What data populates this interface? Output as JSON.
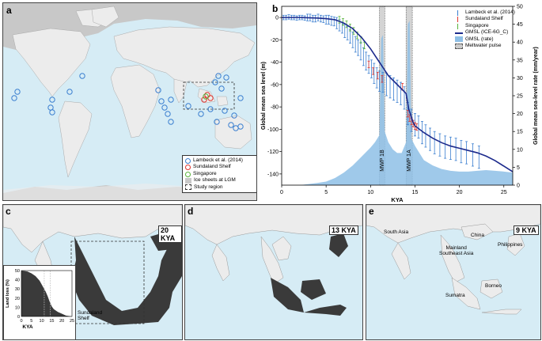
{
  "panels": {
    "a": "a",
    "b": "b",
    "c": "c",
    "d": "d",
    "e": "e"
  },
  "map_legend": {
    "items": [
      {
        "label": "Lambeck et al. (2014)",
        "color": "#3b7fd0",
        "symbol": "circle"
      },
      {
        "label": "Sundaland Shelf",
        "color": "#e0342c",
        "symbol": "circle"
      },
      {
        "label": "Singapore",
        "color": "#58b33a",
        "symbol": "circle"
      },
      {
        "label": "Ice sheets at LGM",
        "color": "#c8c8c8",
        "symbol": "box"
      },
      {
        "label": "Study region",
        "color": "#333333",
        "symbol": "dashed"
      }
    ]
  },
  "kya_badges": {
    "c": "20 KYA",
    "d": "13 KYA",
    "e": "9 KYA"
  },
  "map_text": {
    "sundaland": "Sundaland\nShelf",
    "south_asia": "South Asia",
    "china": "China",
    "mainland": "Mainland\nSoutheast Asia",
    "philippines": "Philippines",
    "borneo": "Borneo",
    "sumatra": "Sumatra"
  },
  "colors": {
    "ocean": "#d6ecf5",
    "land": "#ececec",
    "ice": "#c8c8c8",
    "lgm_land": "#3a3a3a",
    "gmsl": "#1c2a8c",
    "rate_fill": "#8ebfe6",
    "lambeck": "#3b7fd0",
    "sunda": "#e0342c",
    "singapore": "#58b33a"
  },
  "chart_data": [
    {
      "type": "line",
      "panel": "b",
      "xlabel": "KYA",
      "ylabel": "Global mean sea level (m)",
      "y2label": "Global mean sea-level rate (mm/year)",
      "xlim": [
        0,
        26
      ],
      "ylim": [
        -150,
        10
      ],
      "y2lim": [
        0,
        50
      ],
      "xticks": [
        0,
        5,
        10,
        15,
        20,
        25
      ],
      "yticks": [
        0,
        -20,
        -40,
        -60,
        -80,
        -100,
        -120,
        -140
      ],
      "y2ticks": [
        0,
        5,
        10,
        15,
        20,
        25,
        30,
        35,
        40,
        45,
        50
      ],
      "annotations": [
        "MWP 1B",
        "MWP 1A"
      ],
      "meltwater_pulses": [
        [
          11.0,
          11.6
        ],
        [
          14.0,
          14.7
        ]
      ],
      "legend_position": "top-right",
      "series": [
        {
          "name": "Lambeck et al. (2014)",
          "kind": "errorbar",
          "color": "#3b7fd0",
          "x": [
            0.2,
            0.5,
            0.8,
            1.1,
            1.4,
            1.7,
            2.0,
            2.3,
            2.6,
            2.9,
            3.2,
            3.5,
            3.8,
            4.1,
            4.4,
            4.7,
            5.0,
            5.3,
            5.6,
            5.9,
            6.2,
            6.5,
            6.8,
            7.1,
            7.4,
            7.7,
            8.0,
            8.3,
            8.6,
            8.9,
            9.2,
            9.5,
            9.8,
            10.1,
            10.4,
            10.7,
            11.0,
            11.4,
            11.8,
            12.2,
            12.6,
            13.0,
            13.4,
            13.8,
            14.2,
            14.6,
            15.0,
            15.4,
            15.8,
            16.2,
            16.7,
            17.2,
            17.8,
            18.4,
            19.0,
            19.6,
            20.2,
            20.8,
            21.5,
            22.2
          ],
          "y": [
            0,
            0,
            0.5,
            0,
            0,
            -0.5,
            0,
            0,
            -0.5,
            0,
            0,
            -1,
            -1,
            0,
            -1,
            -1.5,
            -2,
            -2,
            -3,
            -3.5,
            -5,
            -7,
            -9,
            -12,
            -14,
            -17,
            -20,
            -24,
            -27,
            -30,
            -35,
            -39,
            -42,
            -46,
            -50,
            -54,
            -57,
            -58,
            -60,
            -62,
            -64,
            -66,
            -68,
            -72,
            -86,
            -92,
            -96,
            -98,
            -103,
            -106,
            -109,
            -112,
            -114,
            -116,
            -117,
            -118,
            -120,
            -121,
            -123,
            -125
          ],
          "err": [
            2,
            2,
            2,
            2,
            2,
            2,
            2,
            2,
            2,
            3,
            3,
            3,
            3,
            3,
            3,
            3,
            4,
            4,
            4,
            4,
            5,
            5,
            5,
            6,
            6,
            6,
            7,
            7,
            7,
            8,
            8,
            8,
            8,
            8,
            9,
            9,
            9,
            9,
            10,
            10,
            10,
            10,
            10,
            10,
            10,
            10,
            10,
            10,
            10,
            10,
            10,
            10,
            10,
            10,
            10,
            10,
            10,
            10,
            10,
            10
          ]
        },
        {
          "name": "Sundaland Shelf",
          "kind": "errorbar",
          "color": "#e0342c",
          "x": [
            9.8,
            10.3,
            10.8,
            11.3,
            13.6,
            14.2,
            14.4,
            14.6,
            14.8,
            15.0,
            15.2
          ],
          "y": [
            -42,
            -48,
            -52,
            -55,
            -62,
            -86,
            -90,
            -93,
            -95,
            -97,
            -98
          ],
          "err": [
            3,
            3,
            3,
            3,
            3,
            3,
            3,
            3,
            3,
            3,
            3
          ]
        },
        {
          "name": "Singapore",
          "kind": "errorbar",
          "color": "#58b33a",
          "x": [
            6.5,
            6.9,
            7.3,
            7.7,
            8.1,
            8.5,
            8.9,
            9.3
          ],
          "y": [
            -2,
            -4,
            -6,
            -9,
            -12,
            -16,
            -20,
            -25
          ],
          "err": [
            3,
            3,
            3,
            3,
            3,
            3,
            3,
            3
          ]
        },
        {
          "name": "GMSL (ICE-6G_C)",
          "kind": "line",
          "color": "#1c2a8c",
          "x": [
            0,
            2,
            4,
            5,
            6,
            7,
            8,
            9,
            10,
            11,
            11.5,
            12,
            13,
            14,
            14.3,
            14.8,
            15,
            16,
            17,
            18,
            19,
            20,
            21,
            22,
            23,
            24,
            25,
            26
          ],
          "y": [
            0,
            0,
            -0.5,
            -1,
            -2,
            -5,
            -10,
            -18,
            -28,
            -40,
            -46,
            -52,
            -60,
            -68,
            -82,
            -94,
            -97,
            -103,
            -108,
            -112,
            -115,
            -117,
            -119,
            -121,
            -124,
            -128,
            -133,
            -138
          ]
        },
        {
          "name": "GMSL (rate)",
          "kind": "area",
          "color": "#8ebfe6",
          "x": [
            0,
            2,
            3,
            4,
            5,
            6,
            7,
            8,
            9,
            10,
            10.5,
            11,
            11.2,
            11.4,
            11.6,
            12,
            12.5,
            13,
            13.5,
            14,
            14.2,
            14.4,
            14.6,
            15,
            15.5,
            16,
            17,
            18,
            19,
            20,
            21,
            22,
            23,
            24,
            25,
            26
          ],
          "y": [
            0,
            0,
            0.3,
            0.6,
            1,
            2,
            3.5,
            5.5,
            8,
            10.5,
            12,
            14,
            41,
            42,
            15,
            12,
            10,
            9,
            9,
            12,
            45,
            46,
            13,
            11,
            9,
            7,
            5.5,
            4.5,
            4,
            3.8,
            3.8,
            4,
            4.2,
            4,
            3.8,
            3.5
          ]
        },
        {
          "name": "Meltwater pulse",
          "kind": "band",
          "color": "#cccccc",
          "x": [
            11.0,
            11.6,
            14.0,
            14.7
          ]
        }
      ]
    },
    {
      "type": "area",
      "panel": "c-inset",
      "xlabel": "KYA",
      "ylabel": "Land loss (%)",
      "xlim": [
        0,
        25
      ],
      "ylim": [
        0,
        50
      ],
      "xticks": [
        0,
        5,
        10,
        15,
        20,
        25
      ],
      "yticks": [
        0,
        10,
        20,
        30,
        40,
        50
      ],
      "series": [
        {
          "x": [
            0,
            3,
            5,
            7,
            9,
            10,
            11,
            12,
            13,
            14,
            15,
            16,
            18,
            20,
            22,
            25
          ],
          "y": [
            50,
            49,
            47,
            44,
            39,
            35,
            31,
            27,
            22,
            16,
            11,
            8,
            5,
            3,
            1,
            0
          ]
        }
      ]
    }
  ]
}
